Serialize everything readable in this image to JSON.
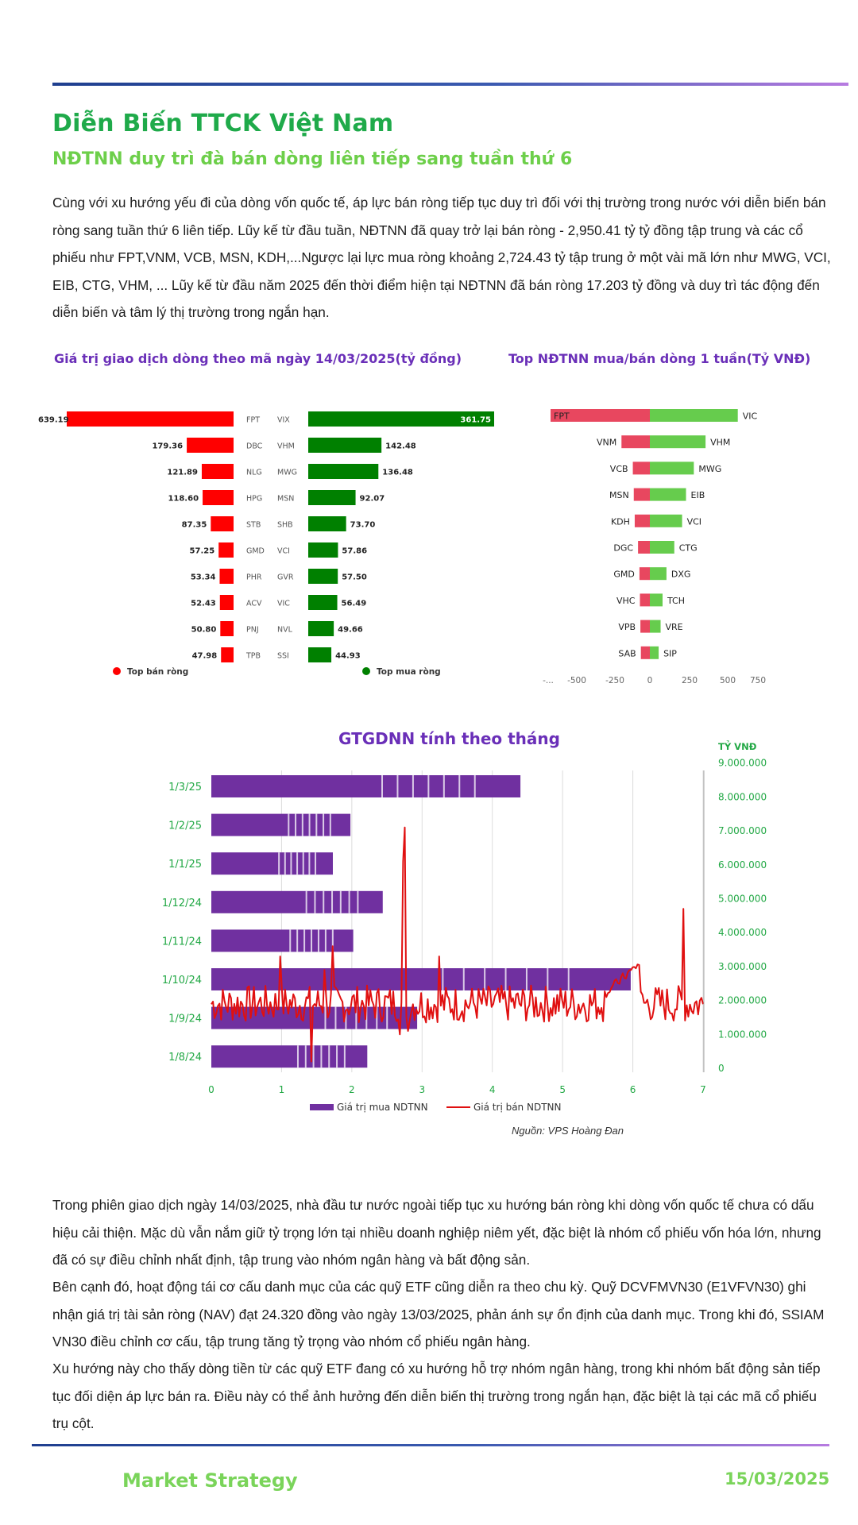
{
  "header": {
    "title": "Diễn Biến TTCK Việt Nam",
    "subtitle": "NĐTNN duy trì đà bán dòng liên tiếp sang tuần thứ 6"
  },
  "intro_paragraph": "Cùng với xu hướng yếu đi của dòng vốn quốc tế, áp lực bán ròng tiếp tục duy trì đối với thị trường trong nước với diễn biến bán ròng sang tuần thứ 6 liên tiếp. Lũy kế từ đầu tuần, NĐTNN đã quay trở lại bán ròng - 2,950.41 tỷ tỷ đồng tập trung và các cổ phiếu như FPT,VNM, VCB, MSN, KDH,...Ngược lại lực mua ròng khoảng 2,724.43 tỷ tập trung ở một vài mã lớn như MWG, VCI, EIB, CTG, VHM, ... Lũy kế từ đầu năm 2025 đến thời điểm hiện tại NĐTNN đã bán ròng 17.203 tỷ đồng và duy trì tác động đến diễn biến và tâm lý thị trường trong ngắn hạn.",
  "colors": {
    "title_green": "#1faa4a",
    "subtitle_green": "#6dcf4a",
    "chart_title_purple": "#6a2fb8",
    "sell_red": "#ff0000",
    "buy_green": "#008000",
    "week_sell_red": "#e8475f",
    "week_buy_green": "#66cc4d",
    "monthly_bar_purple": "#7030a0",
    "monthly_line_red": "#e01010",
    "axis_green": "#22a845"
  },
  "chart_data": [
    {
      "type": "bar",
      "title": "Giá trị giao dịch dòng theo mã ngày 14/03/2025(tỷ đồng)",
      "series": [
        {
          "name": "Top bán ròng",
          "categories": [
            "FPT",
            "DBC",
            "NLG",
            "HPG",
            "STB",
            "GMD",
            "PHR",
            "ACV",
            "PNJ",
            "TPB"
          ],
          "values": [
            639.19,
            179.36,
            121.89,
            118.6,
            87.35,
            57.25,
            53.34,
            52.43,
            50.8,
            47.98
          ],
          "labels": [
            "639.19",
            "179.36",
            "121.89",
            "118.60",
            "87.35",
            "57.25",
            "53.34",
            "52.43",
            "50.80",
            "47.98"
          ]
        },
        {
          "name": "Top mua ròng",
          "categories": [
            "VIX",
            "VHM",
            "MWG",
            "MSN",
            "SHB",
            "VCI",
            "GVR",
            "VIC",
            "NVL",
            "SSI"
          ],
          "values": [
            361.75,
            142.48,
            136.48,
            92.07,
            73.7,
            57.86,
            57.5,
            56.49,
            49.66,
            44.93
          ],
          "labels": [
            "361.75",
            "142.48",
            "136.48",
            "92.07",
            "73.70",
            "57.86",
            "57.50",
            "56.49",
            "49.66",
            "44.93"
          ]
        }
      ],
      "legend": "bottom"
    },
    {
      "type": "bar",
      "title": "Top NĐTNN mua/bán dòng 1 tuần(Tỷ VNĐ)",
      "sell_categories": [
        "FPT",
        "VNM",
        "VCB",
        "MSN",
        "KDH",
        "DGC",
        "GMD",
        "VHC",
        "VPB",
        "SAB"
      ],
      "sell_values": [
        -1050,
        -300,
        -180,
        -170,
        -160,
        -125,
        -110,
        -105,
        -100,
        -95
      ],
      "buy_categories": [
        "VIC",
        "VHM",
        "MWG",
        "EIB",
        "VCI",
        "CTG",
        "DXG",
        "TCH",
        "VRE",
        "SIP"
      ],
      "buy_values": [
        450,
        285,
        225,
        185,
        165,
        125,
        85,
        65,
        55,
        45
      ],
      "x_ticks": [
        "-...",
        "-500",
        "-250",
        "0",
        "250",
        "500",
        "750"
      ],
      "xlim": [
        -1050,
        750
      ]
    },
    {
      "type": "bar",
      "title": "GTGDNN tính theo tháng",
      "categories": [
        "1/3/25",
        "1/2/25",
        "1/1/25",
        "1/12/24",
        "1/11/24",
        "1/10/24",
        "1/9/24",
        "1/8/24"
      ],
      "bar_series": {
        "name": "Giá trị mua NDTNN",
        "values": [
          4.4,
          1.98,
          1.73,
          2.44,
          2.02,
          5.97,
          2.93,
          2.22
        ]
      },
      "line_series": {
        "name": "Giá trị bán NDTNN"
      },
      "x_ticks": [
        "0",
        "1",
        "2",
        "3",
        "4",
        "5",
        "6",
        "7"
      ],
      "xlim": [
        0,
        7
      ],
      "y2_label": "TỶ VNĐ",
      "y2_ticks": [
        "0",
        "1.000.000",
        "2.000.000",
        "3.000.000",
        "4.000.000",
        "5.000.000",
        "6.000.000",
        "7.000.000",
        "8.000.000",
        "9.000.000"
      ],
      "source": "Nguồn: VPS Hoàng Đan"
    }
  ],
  "body_paragraphs": [
    "Trong phiên giao dịch ngày 14/03/2025, nhà đầu tư nước ngoài tiếp tục xu hướng bán ròng khi dòng vốn quốc tế chưa có dấu hiệu cải thiện. Mặc dù vẫn nắm giữ tỷ trọng lớn tại nhiều doanh nghiệp niêm yết, đặc biệt là nhóm cổ phiếu vốn hóa lớn, nhưng đã có sự điều chỉnh nhất định, tập trung vào nhóm ngân hàng và bất động sản.",
    "Bên cạnh đó, hoạt động tái cơ cấu danh mục của các quỹ ETF cũng diễn ra theo chu kỳ. Quỹ DCVFMVN30 (E1VFVN30) ghi nhận giá trị tài sản ròng (NAV) đạt 24.320 đồng vào ngày 13/03/2025, phản ánh sự ổn định của danh mục. Trong khi đó, SSIAM VN30 điều chỉnh cơ cấu, tập trung tăng tỷ trọng vào nhóm cổ phiếu ngân hàng.",
    "Xu hướng này cho thấy dòng tiền từ các quỹ ETF đang có xu hướng hỗ trợ nhóm ngân hàng, trong khi nhóm bất động sản tiếp tục đối diện áp lực bán ra. Điều này có thể ảnh hưởng đến diễn biến thị trường trong ngắn hạn, đặc biệt là tại các mã cổ phiếu trụ cột."
  ],
  "footer": {
    "left": "Market Strategy",
    "right": "15/03/2025"
  }
}
